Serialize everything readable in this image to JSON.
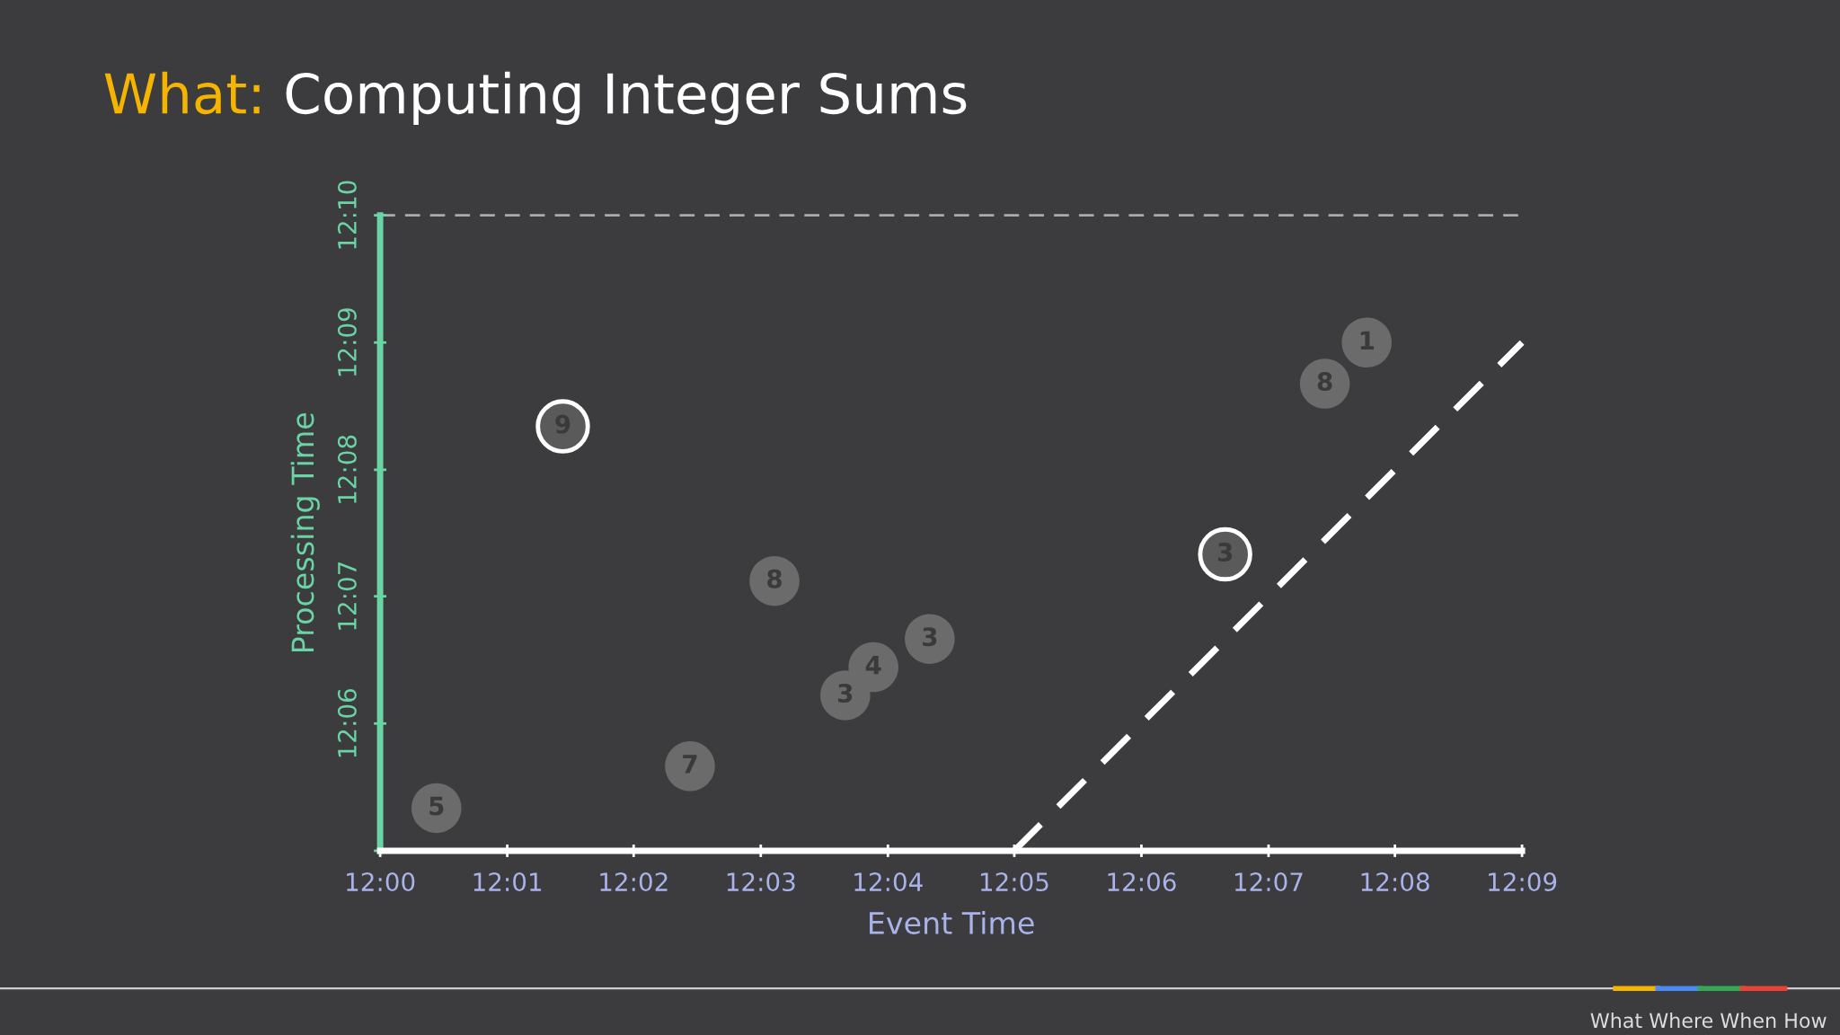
{
  "chart_data": {
    "type": "scatter",
    "title": "What: Computing Integer Sums",
    "xlabel": "Event Time",
    "ylabel": "Processing Time",
    "xlim": [
      12.0,
      12.15
    ],
    "ylim": [
      12.0833,
      12.1667
    ],
    "xticks": [
      {
        "value": 12.0,
        "label": "12:00"
      },
      {
        "value": 12.0167,
        "label": "12:01"
      },
      {
        "value": 12.0333,
        "label": "12:02"
      },
      {
        "value": 12.05,
        "label": "12:03"
      },
      {
        "value": 12.0667,
        "label": "12:04"
      },
      {
        "value": 12.0833,
        "label": "12:05"
      },
      {
        "value": 12.1,
        "label": "12:06"
      },
      {
        "value": 12.1167,
        "label": "12:07"
      },
      {
        "value": 12.1333,
        "label": "12:08"
      },
      {
        "value": 12.15,
        "label": "12:09"
      }
    ],
    "yticks": [
      {
        "value": 12.0833,
        "label": null
      },
      {
        "value": 12.1,
        "label": "12:06"
      },
      {
        "value": 12.1167,
        "label": "12:07"
      },
      {
        "value": 12.1333,
        "label": "12:08"
      },
      {
        "value": 12.15,
        "label": "12:09"
      },
      {
        "value": 12.1667,
        "label": "12:10"
      }
    ],
    "series": [
      {
        "color": "#6b6b6b",
        "x": [
          12.0074,
          12.0407,
          12.0518,
          12.0611,
          12.0648,
          12.0722,
          12.1241,
          12.1296
        ],
        "values": [
          12.0889,
          12.0944,
          12.1187,
          12.1037,
          12.1074,
          12.1111,
          12.1446,
          12.15
        ]
      },
      {
        "color": "#5a5a5a",
        "x": [
          12.024,
          12.111
        ],
        "values": [
          12.139,
          12.1222
        ]
      },
      {
        "type": "line",
        "marker": "none",
        "color": "#ffffff",
        "line_style": "dashed",
        "x": [
          12.0833,
          12.15
        ],
        "values": [
          12.0833,
          12.15
        ]
      }
    ],
    "ref_lines": [
      {
        "axis": "y",
        "value": 12.1667,
        "color": "#aaaaaa",
        "line_style": "dashed"
      }
    ],
    "annotations": [
      {
        "text": "5",
        "x": 12.0074,
        "y": 12.0889
      },
      {
        "text": "7",
        "x": 12.0407,
        "y": 12.0944
      },
      {
        "text": "8",
        "x": 12.0518,
        "y": 12.1187
      },
      {
        "text": "3",
        "x": 12.0611,
        "y": 12.1037
      },
      {
        "text": "4",
        "x": 12.0648,
        "y": 12.1074
      },
      {
        "text": "3",
        "x": 12.0722,
        "y": 12.1111
      },
      {
        "text": "8",
        "x": 12.1241,
        "y": 12.1446
      },
      {
        "text": "1",
        "x": 12.1296,
        "y": 12.15
      },
      {
        "text": "9",
        "x": 12.024,
        "y": 12.139
      },
      {
        "text": "3",
        "x": 12.111,
        "y": 12.1222
      },
      "What Where When How"
    ],
    "marker": "circle",
    "grid": false
  }
}
